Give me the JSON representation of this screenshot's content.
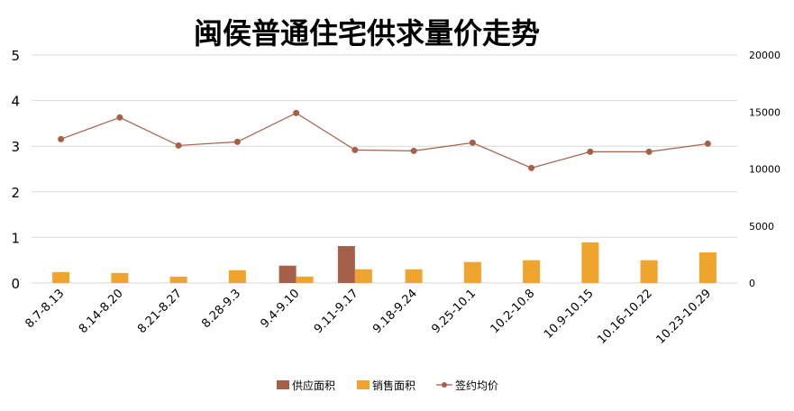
{
  "chart_data": {
    "type": "bar+line",
    "title": "闽侯普通住宅供求量价走势",
    "categories": [
      "8.7-8.13",
      "8.14-8.20",
      "8.21-8.27",
      "8.28-9.3",
      "9.4-9.10",
      "9.11-9.17",
      "9.18-9.24",
      "9.25-10.1",
      "10.2-10.8",
      "10.9-10.15",
      "10.16-10.22",
      "10.23-10.29"
    ],
    "series": [
      {
        "name": "供应面积",
        "type": "bar",
        "axis": "left",
        "color": "#A5604A",
        "values": [
          0,
          0,
          0,
          0,
          0.38,
          0.81,
          0,
          0,
          0,
          0,
          0,
          0
        ]
      },
      {
        "name": "销售面积",
        "type": "bar",
        "axis": "left",
        "color": "#EFA42E",
        "values": [
          0.24,
          0.22,
          0.14,
          0.28,
          0.14,
          0.3,
          0.3,
          0.46,
          0.5,
          0.89,
          0.5,
          0.67
        ]
      },
      {
        "name": "签约均价",
        "type": "line",
        "axis": "right",
        "color": "#A5604A",
        "values": [
          12620,
          14520,
          12060,
          12380,
          14910,
          11670,
          11590,
          12300,
          10090,
          11510,
          11510,
          12220
        ]
      }
    ],
    "ylim": [
      0,
      5
    ],
    "yticks": [
      "0",
      "1",
      "2",
      "3",
      "4",
      "5"
    ],
    "y2lim": [
      0,
      20000
    ],
    "y2ticks": [
      "0",
      "5000",
      "10000",
      "15000",
      "20000"
    ],
    "grid": true,
    "legend": "bottom"
  }
}
